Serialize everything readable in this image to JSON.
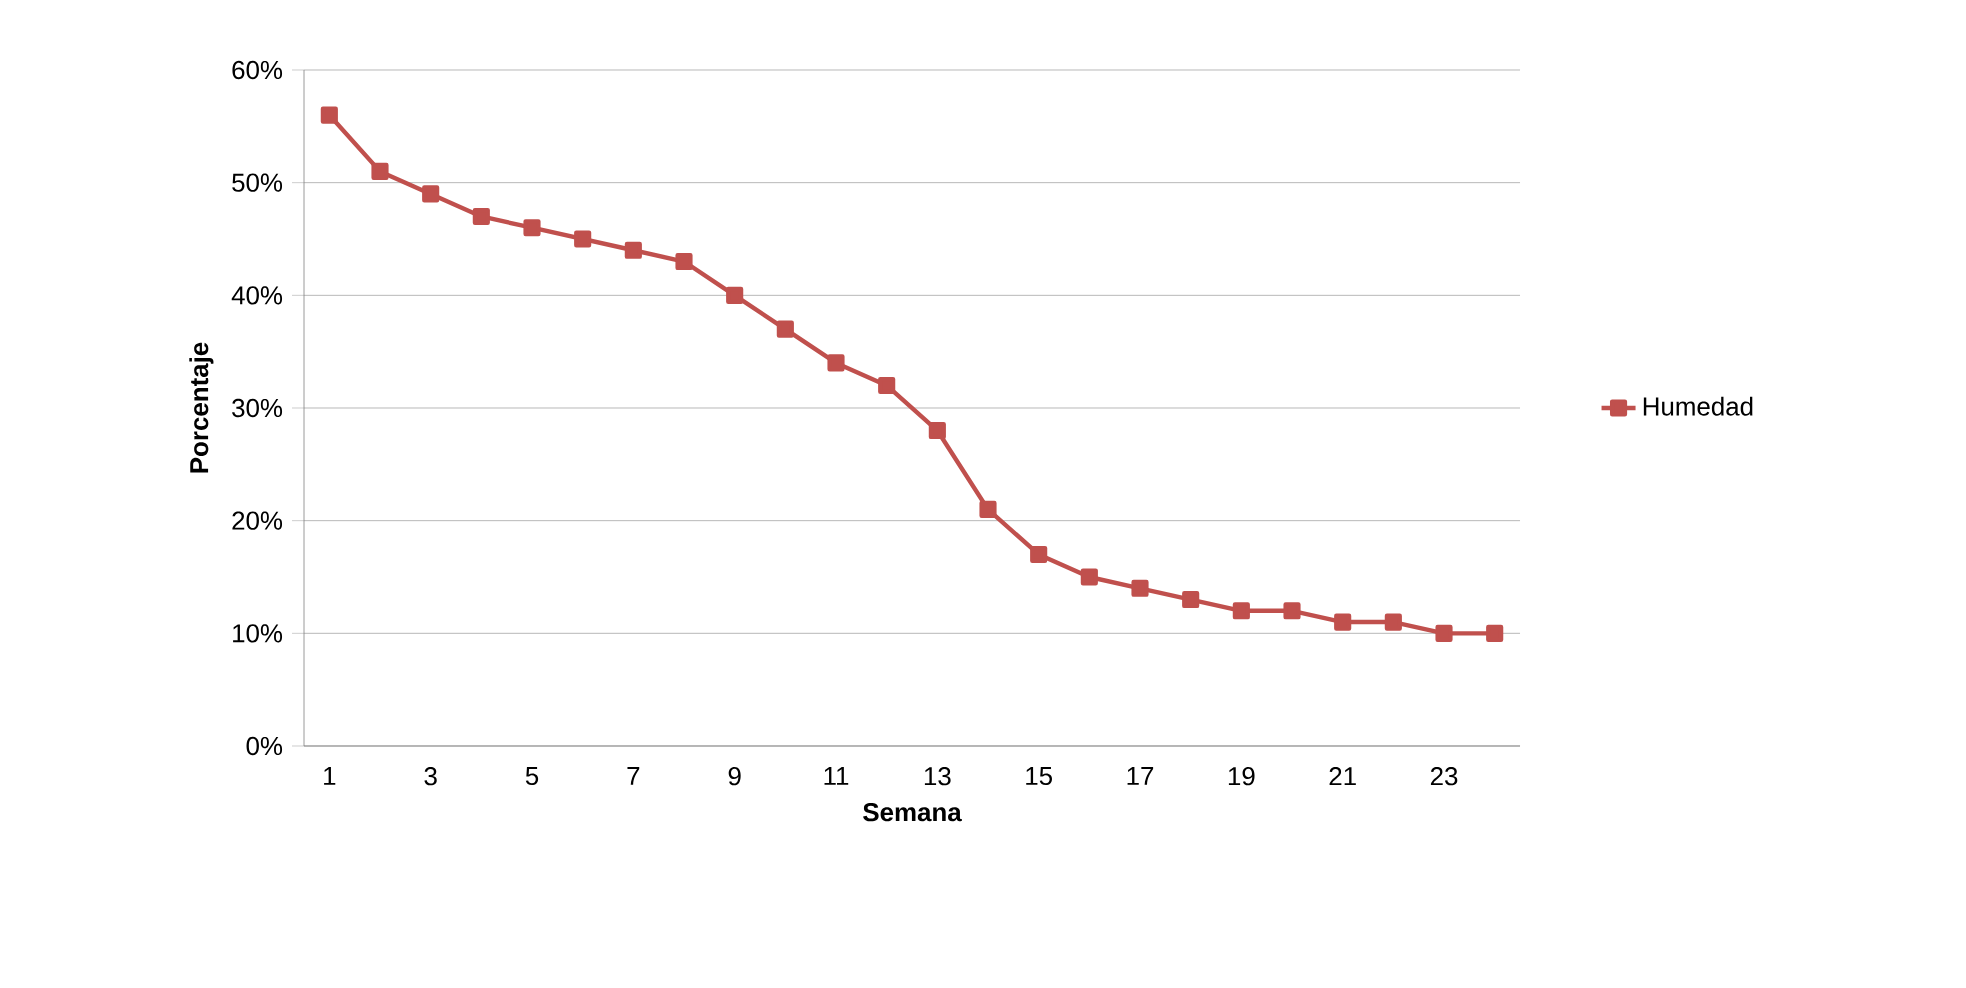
{
  "chart_data": {
    "type": "line",
    "xlabel": "Semana",
    "ylabel": "Porcentaje",
    "categories": [
      "1",
      null,
      "3",
      null,
      "5",
      null,
      "7",
      null,
      "9",
      null,
      "11",
      null,
      "13",
      null,
      "15",
      null,
      "17",
      null,
      "19",
      null,
      "21",
      null,
      "23",
      null
    ],
    "series": [
      {
        "name": "Humedad",
        "color": "#c0504d",
        "values": [
          56,
          51,
          49,
          47,
          46,
          45,
          44,
          43,
          40,
          37,
          34,
          32,
          28,
          21,
          17,
          15,
          14,
          13,
          12,
          12,
          11,
          11,
          10,
          10
        ]
      }
    ],
    "ylim": [
      0,
      60
    ],
    "yticks": [
      {
        "value": 0,
        "label": "0%"
      },
      {
        "value": 10,
        "label": "10%"
      },
      {
        "value": 20,
        "label": "20%"
      },
      {
        "value": 30,
        "label": "30%"
      },
      {
        "value": 40,
        "label": "40%"
      },
      {
        "value": 50,
        "label": "50%"
      },
      {
        "value": 60,
        "label": "60%"
      }
    ],
    "grid": "y",
    "legend": "right",
    "marker": "square",
    "line_style": "solid"
  }
}
